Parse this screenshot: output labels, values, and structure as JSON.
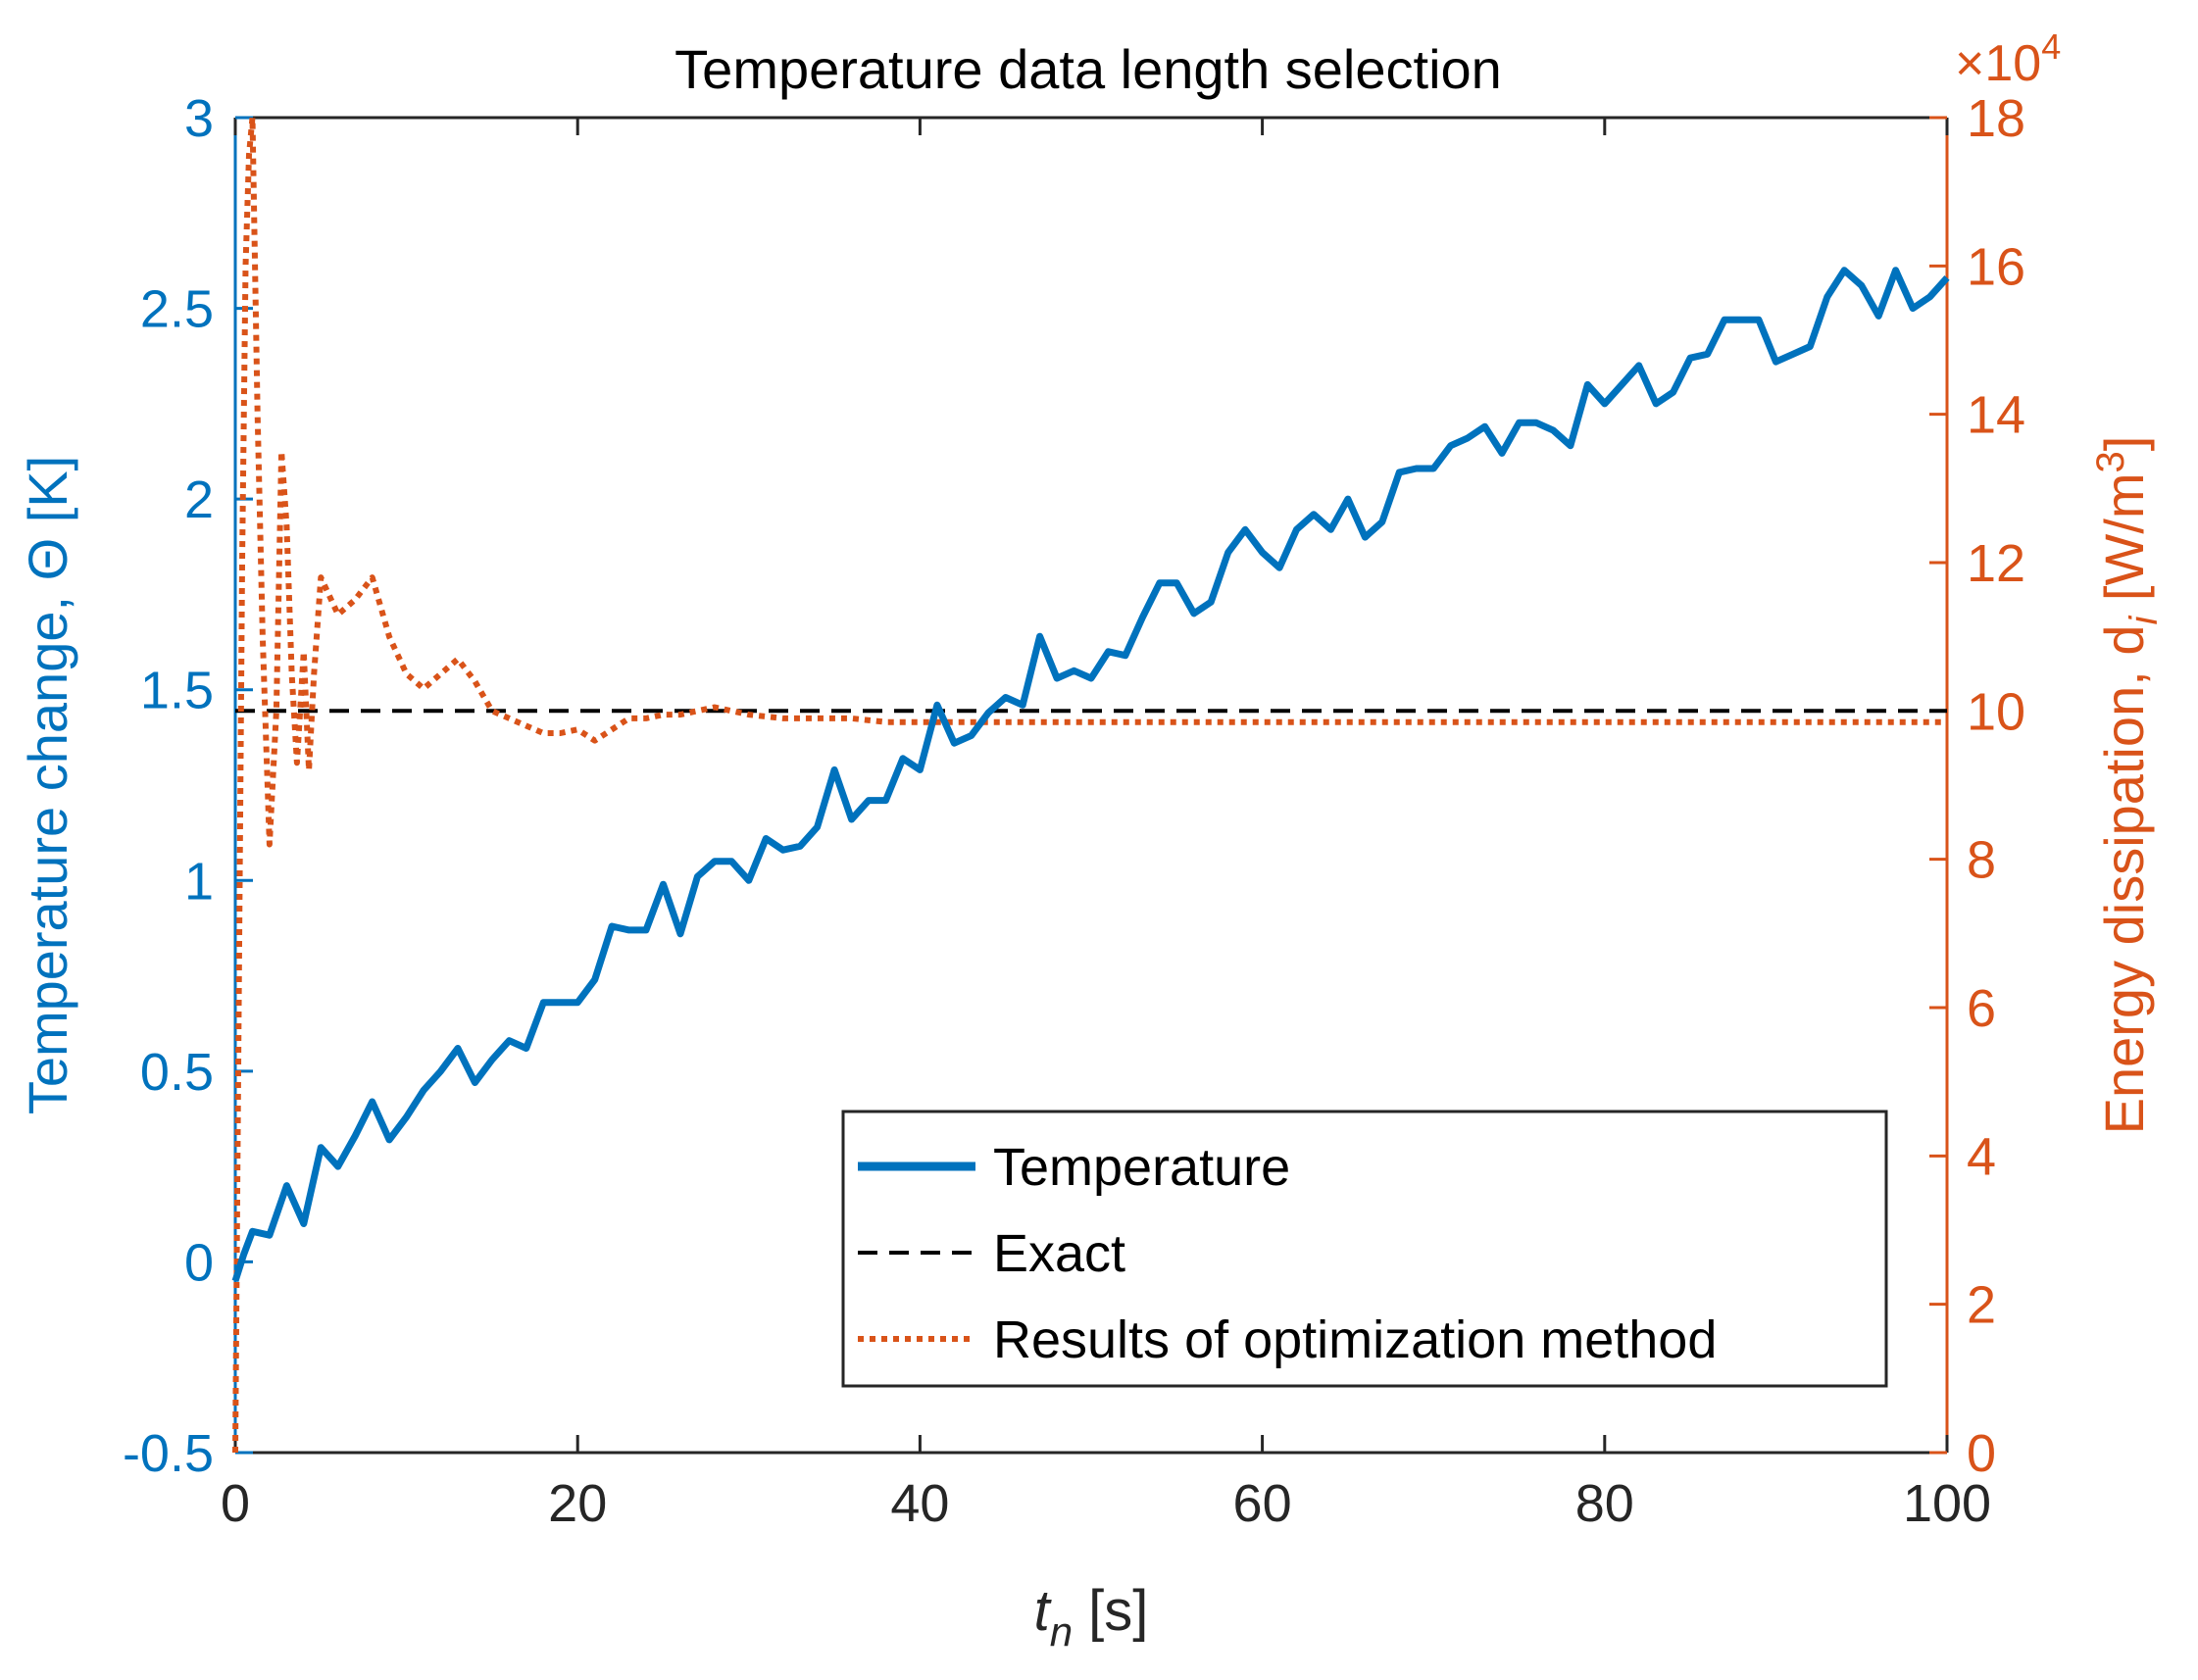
{
  "chart_data": {
    "type": "line",
    "title": "Temperature data length selection",
    "xlabel": {
      "base": "t",
      "sub": "n",
      "unit": " [s]"
    },
    "xlim": [
      0,
      100
    ],
    "xticks": [
      0,
      20,
      40,
      60,
      80,
      100
    ],
    "left_axis": {
      "label": "Temperature change, Θ [K]",
      "ylim": [
        -0.5,
        3
      ],
      "ticks": [
        -0.5,
        0,
        0.5,
        1,
        1.5,
        2,
        2.5,
        3
      ],
      "tick_labels": [
        "-0.5",
        "0",
        "0.5",
        "1",
        "1.5",
        "2",
        "2.5",
        "3"
      ],
      "color": "#0072BD"
    },
    "right_axis": {
      "label": {
        "base": "Energy dissipation, d",
        "sub": "i",
        "unit": " [W/m",
        "sup": "3",
        "close": "]"
      },
      "exponent": {
        "base": "×10",
        "power": "4"
      },
      "ylim": [
        0,
        18
      ],
      "ticks": [
        0,
        2,
        4,
        6,
        8,
        10,
        12,
        14,
        16,
        18
      ],
      "tick_labels": [
        "0",
        "2",
        "4",
        "6",
        "8",
        "10",
        "12",
        "14",
        "16",
        "18"
      ],
      "color": "#D95319"
    },
    "legend": {
      "position": "bottom-right",
      "entries": [
        "Temperature",
        "Exact",
        "Results of optimization method"
      ]
    },
    "series": [
      {
        "name": "Temperature",
        "axis": "left",
        "style": "solid",
        "color": "#0072BD",
        "x": [
          0,
          0.5,
          1,
          2,
          3,
          4,
          5,
          6,
          7,
          8,
          9,
          10,
          11,
          12,
          13,
          14,
          15,
          16,
          17,
          18,
          19,
          20,
          21,
          22,
          23,
          24,
          25,
          26,
          27,
          28,
          29,
          30,
          31,
          32,
          33,
          34,
          35,
          36,
          37,
          38,
          39,
          40,
          41,
          42,
          43,
          44,
          45,
          46,
          47,
          48,
          49,
          50,
          51,
          52,
          53,
          54,
          55,
          56,
          57,
          58,
          59,
          60,
          61,
          62,
          63,
          64,
          65,
          66,
          67,
          68,
          69,
          70,
          71,
          72,
          73,
          74,
          75,
          76,
          77,
          78,
          79,
          80,
          81,
          82,
          83,
          84,
          85,
          86,
          87,
          88,
          89,
          90,
          91,
          92,
          93,
          94,
          95,
          96,
          97,
          98,
          99,
          100
        ],
        "values": [
          -0.05,
          0.02,
          0.08,
          0.07,
          0.2,
          0.1,
          0.3,
          0.25,
          0.33,
          0.42,
          0.32,
          0.38,
          0.45,
          0.5,
          0.56,
          0.47,
          0.53,
          0.58,
          0.56,
          0.68,
          0.68,
          0.68,
          0.74,
          0.88,
          0.87,
          0.87,
          0.99,
          0.86,
          1.01,
          1.05,
          1.05,
          1.0,
          1.11,
          1.08,
          1.09,
          1.14,
          1.29,
          1.16,
          1.21,
          1.21,
          1.32,
          1.29,
          1.46,
          1.36,
          1.38,
          1.44,
          1.48,
          1.46,
          1.64,
          1.53,
          1.55,
          1.53,
          1.6,
          1.59,
          1.69,
          1.78,
          1.78,
          1.7,
          1.73,
          1.86,
          1.92,
          1.86,
          1.82,
          1.92,
          1.96,
          1.92,
          2.0,
          1.9,
          1.94,
          2.07,
          2.08,
          2.08,
          2.14,
          2.16,
          2.19,
          2.12,
          2.2,
          2.2,
          2.18,
          2.14,
          2.3,
          2.25,
          2.3,
          2.35,
          2.25,
          2.28,
          2.37,
          2.38,
          2.47,
          2.47,
          2.47,
          2.36,
          2.38,
          2.4,
          2.53,
          2.6,
          2.56,
          2.48,
          2.6,
          2.5,
          2.53,
          2.58
        ]
      },
      {
        "name": "Exact",
        "axis": "right",
        "style": "dashed",
        "color": "#000000",
        "x": [
          0,
          100
        ],
        "values": [
          10,
          10
        ]
      },
      {
        "name": "Results of optimization method",
        "axis": "right",
        "style": "dotted",
        "color": "#D95319",
        "x": [
          0,
          0.2,
          0.4,
          0.6,
          0.8,
          1,
          1.3,
          1.6,
          2,
          2.4,
          2.7,
          3,
          3.3,
          3.6,
          4,
          4.3,
          4.6,
          5,
          6,
          7,
          8,
          9,
          10,
          11,
          12,
          13,
          14,
          15,
          16,
          17,
          18,
          19,
          20,
          21,
          22,
          23,
          24,
          25,
          26,
          27,
          28,
          29,
          30,
          32,
          34,
          36,
          38,
          40,
          45,
          50,
          55,
          60,
          65,
          70,
          75,
          80,
          85,
          90,
          95,
          100
        ],
        "values": [
          0,
          6,
          12,
          16,
          17.5,
          18,
          14,
          11,
          8.2,
          10,
          13.5,
          12.5,
          10.5,
          9.3,
          10.8,
          9.2,
          10.5,
          11.8,
          11.3,
          11.5,
          11.8,
          11,
          10.5,
          10.3,
          10.5,
          10.7,
          10.4,
          10.0,
          9.9,
          9.8,
          9.7,
          9.7,
          9.75,
          9.6,
          9.75,
          9.9,
          9.9,
          9.95,
          9.95,
          10.0,
          10.05,
          10.0,
          9.95,
          9.9,
          9.9,
          9.9,
          9.85,
          9.85,
          9.85,
          9.85,
          9.85,
          9.85,
          9.85,
          9.85,
          9.85,
          9.85,
          9.85,
          9.85,
          9.85,
          9.85
        ]
      }
    ]
  }
}
